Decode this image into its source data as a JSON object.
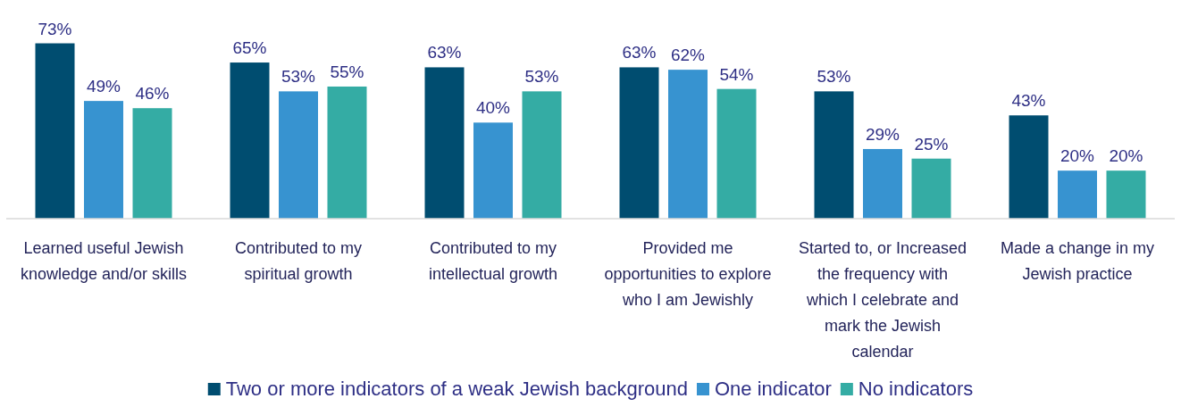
{
  "chart_data": {
    "type": "bar",
    "categories": [
      "Learned useful Jewish knowledge and/or skills",
      "Contributed to my spiritual growth",
      "Contributed to my intellectual growth",
      "Provided me opportunities to explore who I am Jewishly",
      "Started to, or Increased the frequency with which I celebrate and mark the Jewish calendar",
      "Made a change in my Jewish practice"
    ],
    "series": [
      {
        "name": "Two or more indicators of a weak Jewish background",
        "color": "#004d70",
        "values": [
          73,
          65,
          63,
          63,
          53,
          43
        ],
        "value_labels": [
          "73%",
          "65%",
          "63%",
          "63%",
          "53%",
          "43%"
        ]
      },
      {
        "name": "One indicator",
        "color": "#3793d0",
        "values": [
          49,
          53,
          40,
          62,
          29,
          20
        ],
        "value_labels": [
          "49%",
          "53%",
          "40%",
          "62%",
          "29%",
          "20%"
        ]
      },
      {
        "name": "No indicators",
        "color": "#34aca4",
        "values": [
          46,
          55,
          53,
          54,
          25,
          20
        ],
        "value_labels": [
          "46%",
          "55%",
          "53%",
          "54%",
          "25%",
          "20%"
        ]
      }
    ],
    "legend": "bottom"
  }
}
